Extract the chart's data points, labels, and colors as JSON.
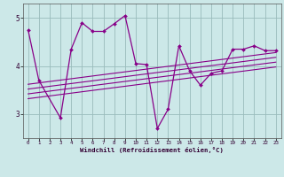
{
  "xlabel": "Windchill (Refroidissement éolien,°C)",
  "background_color": "#cce8e8",
  "line_color": "#880088",
  "grid_color": "#99bbbb",
  "xlim": [
    -0.5,
    23.5
  ],
  "ylim": [
    2.5,
    5.3
  ],
  "yticks": [
    3,
    4,
    5
  ],
  "xticks": [
    0,
    1,
    2,
    3,
    4,
    5,
    6,
    7,
    8,
    9,
    10,
    11,
    12,
    13,
    14,
    15,
    16,
    17,
    18,
    19,
    20,
    21,
    22,
    23
  ],
  "series1_x": [
    0,
    1,
    3,
    4,
    5,
    6,
    7,
    8,
    9,
    10,
    11,
    12,
    13,
    14,
    15,
    16,
    17,
    18,
    19,
    20,
    21,
    22,
    23
  ],
  "series1_y": [
    4.75,
    3.7,
    2.92,
    4.35,
    4.9,
    4.72,
    4.72,
    4.88,
    5.05,
    4.05,
    4.03,
    2.7,
    3.1,
    4.42,
    3.9,
    3.6,
    3.85,
    3.9,
    4.35,
    4.35,
    4.42,
    4.32,
    4.32
  ],
  "regression_lines": [
    {
      "x0": 0,
      "y0": 3.62,
      "x1": 23,
      "y1": 4.28
    },
    {
      "x0": 0,
      "y0": 3.52,
      "x1": 23,
      "y1": 4.18
    },
    {
      "x0": 0,
      "y0": 3.42,
      "x1": 23,
      "y1": 4.08
    },
    {
      "x0": 0,
      "y0": 3.32,
      "x1": 23,
      "y1": 3.98
    }
  ]
}
